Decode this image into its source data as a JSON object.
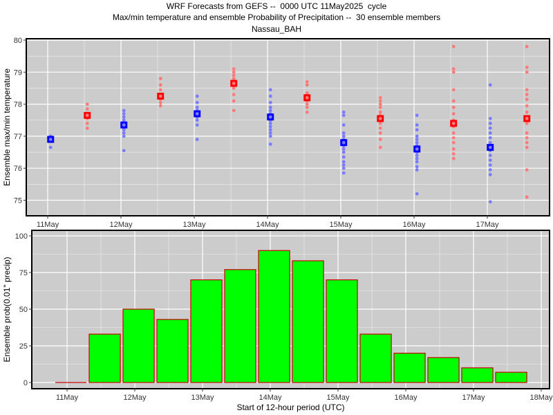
{
  "title": {
    "line1": "WRF Forecasts from GEFS --  0000 UTC 11May2025  cycle",
    "line2": "Max/min temperature and ensemble Probability of Precipitation --  30 ensemble members",
    "line3": "Nassau_BAH"
  },
  "colors": {
    "panel_bg": "#cccccc",
    "grid": "#ffffff",
    "min_points": "#7b7bff",
    "max_points": "#ff7b7b",
    "min_mean": "#0000ff",
    "max_mean": "#ff0000",
    "bar_fill": "#00ff00",
    "bar_edge": "#cc0000"
  },
  "chart_data": [
    {
      "type": "scatter",
      "ylabel": "Ensemble max/min temperature",
      "ylim": [
        74.8,
        80
      ],
      "yticks": [
        "75",
        "76",
        "77",
        "78",
        "79",
        "80"
      ],
      "xticks": [
        "11May",
        "12May",
        "13May",
        "14May",
        "15May",
        "16May",
        "17May"
      ],
      "x_unit": "days after 11May 00 UTC",
      "grid": true,
      "series": [
        {
          "kind": "min",
          "groups": [
            {
              "x": 0.04,
              "mean": 76.9,
              "members": [
                76.65,
                76.85,
                76.9,
                76.95,
                77.0
              ]
            },
            {
              "x": 1.04,
              "mean": 77.35,
              "members": [
                76.55,
                77.0,
                77.1,
                77.2,
                77.3,
                77.4,
                77.5,
                77.6,
                77.7,
                77.8
              ]
            },
            {
              "x": 2.04,
              "mean": 77.7,
              "members": [
                76.9,
                77.35,
                77.5,
                77.6,
                77.7,
                77.8,
                77.9,
                78.05,
                78.25
              ]
            },
            {
              "x": 3.04,
              "mean": 77.6,
              "members": [
                76.75,
                77.0,
                77.1,
                77.2,
                77.3,
                77.4,
                77.5,
                77.6,
                77.7,
                77.8,
                77.9,
                78.05,
                78.25,
                78.45
              ]
            },
            {
              "x": 4.04,
              "mean": 76.8,
              "members": [
                75.85,
                76.0,
                76.1,
                76.2,
                76.35,
                76.5,
                76.6,
                76.7,
                76.8,
                76.9,
                77.0,
                77.1,
                77.35,
                77.65,
                77.75
              ]
            },
            {
              "x": 5.04,
              "mean": 76.6,
              "members": [
                75.2,
                75.95,
                76.05,
                76.2,
                76.3,
                76.4,
                76.5,
                76.6,
                76.7,
                76.8,
                76.9,
                77.0,
                77.2,
                77.35,
                77.65
              ]
            },
            {
              "x": 6.04,
              "mean": 76.65,
              "members": [
                74.95,
                75.8,
                75.95,
                76.1,
                76.25,
                76.4,
                76.55,
                76.7,
                76.8,
                76.95,
                77.1,
                77.25,
                77.4,
                77.55,
                78.6
              ]
            }
          ]
        },
        {
          "kind": "max",
          "groups": [
            {
              "x": 0.54,
              "mean": 77.65,
              "members": [
                77.25,
                77.4,
                77.55,
                77.7,
                77.85,
                78.0
              ]
            },
            {
              "x": 1.54,
              "mean": 78.25,
              "members": [
                77.95,
                78.05,
                78.15,
                78.3,
                78.45,
                78.6,
                78.8
              ]
            },
            {
              "x": 2.54,
              "mean": 78.65,
              "members": [
                77.8,
                78.1,
                78.3,
                78.5,
                78.6,
                78.7,
                78.8,
                78.9,
                79.0,
                79.1
              ]
            },
            {
              "x": 3.54,
              "mean": 78.2,
              "members": [
                77.75,
                77.9,
                78.0,
                78.1,
                78.2,
                78.3,
                78.35,
                78.6,
                78.7
              ]
            },
            {
              "x": 4.54,
              "mean": 77.55,
              "members": [
                76.65,
                76.9,
                77.1,
                77.25,
                77.4,
                77.55,
                77.65,
                77.75,
                77.9,
                78.0,
                78.1,
                78.2
              ]
            },
            {
              "x": 5.54,
              "mean": 77.4,
              "members": [
                76.3,
                76.45,
                76.6,
                76.8,
                76.95,
                77.1,
                77.3,
                77.5,
                77.7,
                77.9,
                78.1,
                78.45,
                79.0,
                79.1,
                79.8
              ]
            },
            {
              "x": 6.54,
              "mean": 77.55,
              "members": [
                75.1,
                75.95,
                76.65,
                76.8,
                76.95,
                77.1,
                77.4,
                77.6,
                77.75,
                77.95,
                78.15,
                78.3,
                78.45,
                79.0,
                79.15,
                79.8
              ]
            }
          ]
        }
      ]
    },
    {
      "type": "bar",
      "ylabel": "Ensemble prob(0.01\" precip)",
      "xlabel": "Start of 12-hour period (UTC)",
      "ylim": [
        -5,
        105
      ],
      "yticks": [
        "0",
        "25",
        "50",
        "75",
        "100"
      ],
      "xticks": [
        "11May",
        "12May",
        "13May",
        "14May",
        "15May",
        "16May",
        "17May",
        "18May"
      ],
      "x_unit": "days after 11May 00 UTC (bar start)",
      "bar_width_days": 0.46,
      "grid": true,
      "bars": [
        {
          "x": 0.0,
          "value": 0
        },
        {
          "x": 0.5,
          "value": 33
        },
        {
          "x": 1.0,
          "value": 50
        },
        {
          "x": 1.5,
          "value": 43
        },
        {
          "x": 2.0,
          "value": 70
        },
        {
          "x": 2.5,
          "value": 77
        },
        {
          "x": 3.0,
          "value": 90
        },
        {
          "x": 3.5,
          "value": 83
        },
        {
          "x": 4.0,
          "value": 70
        },
        {
          "x": 4.5,
          "value": 33
        },
        {
          "x": 5.0,
          "value": 20
        },
        {
          "x": 5.5,
          "value": 17
        },
        {
          "x": 6.0,
          "value": 10
        },
        {
          "x": 6.5,
          "value": 7
        }
      ]
    }
  ]
}
